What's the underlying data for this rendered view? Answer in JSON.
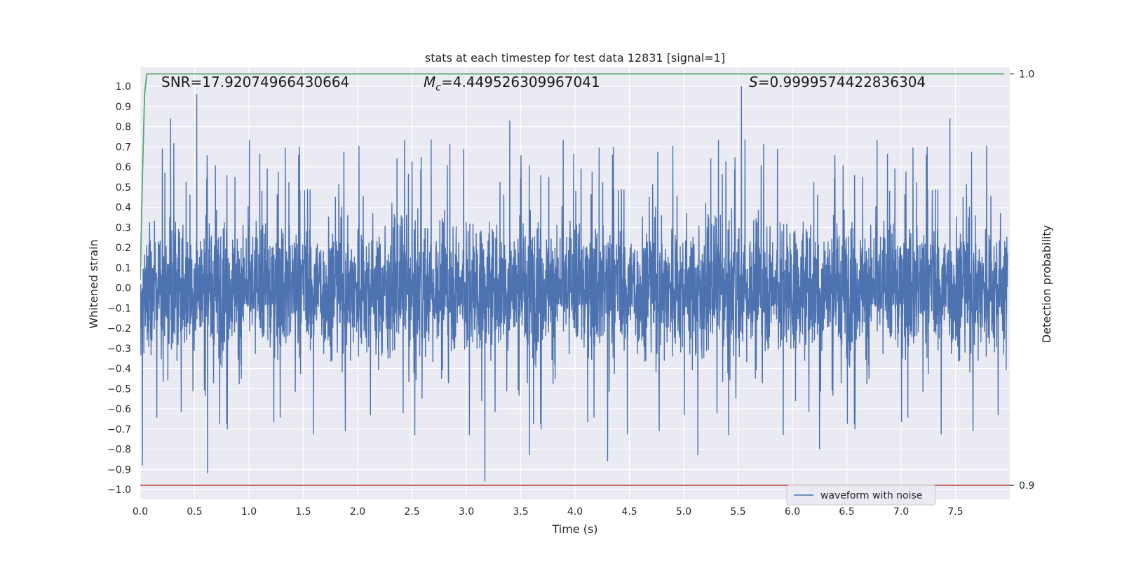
{
  "chart_data": {
    "type": "line",
    "title": "stats at each timestep for test data 12831 [signal=1]",
    "xlabel": "Time (s)",
    "ylabel": "Whitened strain",
    "y2label": "Detection probability",
    "xlim": [
      0.0,
      8.0
    ],
    "ylim": [
      -1.05,
      1.1
    ],
    "y2lim": [
      0.8966,
      1.0016
    ],
    "x_ticks": [
      "0.0",
      "0.5",
      "1.0",
      "1.5",
      "2.0",
      "2.5",
      "3.0",
      "3.5",
      "4.0",
      "4.5",
      "5.0",
      "5.5",
      "6.0",
      "6.5",
      "7.0",
      "7.5"
    ],
    "y_ticks": [
      "1.0",
      "0.9",
      "0.8",
      "0.7",
      "0.6",
      "0.5",
      "0.4",
      "0.3",
      "0.2",
      "0.1",
      "0.0",
      "-0.1",
      "-0.2",
      "-0.3",
      "-0.4",
      "-0.5",
      "-0.6",
      "-0.7",
      "-0.8",
      "-0.9",
      "-1.0"
    ],
    "y2_ticks": [
      "1.0",
      "0.9"
    ],
    "grid": true,
    "legend_position": "bottom-right",
    "annotations": {
      "snr": "SNR=17.92074966430664",
      "mc_symbol": "M",
      "mc_sub": "c",
      "mc_value": "=4.449526309967041",
      "s_symbol": "S",
      "s_value": "=0.9999574422836304"
    },
    "series": [
      {
        "name": "waveform with noise",
        "color": "#4c72b0",
        "description_of_values": "noise-like strain, x from 0.0 to 8.0 s, mostly within about -0.45 to 0.45 with peaks",
        "peaks": [
          {
            "x": 0.52,
            "y": 0.96
          },
          {
            "x": 0.28,
            "y": 0.84
          },
          {
            "x": 3.4,
            "y": 0.83
          },
          {
            "x": 5.53,
            "y": 1.0
          },
          {
            "x": 7.45,
            "y": 0.84
          },
          {
            "x": 0.62,
            "y": -0.92
          },
          {
            "x": 3.17,
            "y": -0.96
          },
          {
            "x": 3.58,
            "y": -0.83
          },
          {
            "x": 4.3,
            "y": -0.86
          },
          {
            "x": 5.13,
            "y": -0.83
          },
          {
            "x": 0.02,
            "y": -0.88
          },
          {
            "x": 6.25,
            "y": -0.8
          }
        ]
      },
      {
        "name": "Detection probability",
        "color": "#55a868",
        "axis": "right",
        "x": [
          0.0,
          0.02,
          0.04,
          0.06,
          0.1,
          7.95
        ],
        "y": [
          0.95,
          0.975,
          0.995,
          1.0,
          1.0,
          1.0
        ]
      },
      {
        "name": "threshold",
        "color": "#c44e52",
        "axis": "right",
        "x": [
          0.0,
          8.0
        ],
        "y": [
          0.9,
          0.9
        ]
      }
    ]
  }
}
